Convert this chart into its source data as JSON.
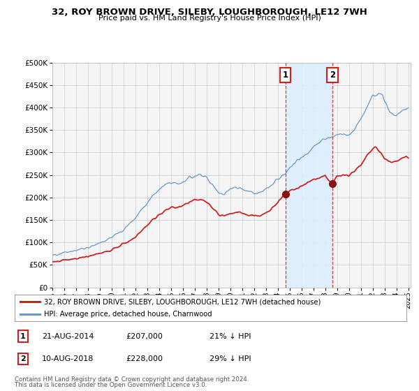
{
  "title": "32, ROY BROWN DRIVE, SILEBY, LOUGHBOROUGH, LE12 7WH",
  "subtitle": "Price paid vs. HM Land Registry's House Price Index (HPI)",
  "background_color": "#ffffff",
  "plot_bg_color": "#f5f5f5",
  "line1_color": "#cc2222",
  "line2_color": "#6699cc",
  "shading_color": "#ddeeff",
  "annotation1": {
    "label": "1",
    "date": "21-AUG-2014",
    "price": "£207,000",
    "pct": "21% ↓ HPI"
  },
  "annotation2": {
    "label": "2",
    "date": "10-AUG-2018",
    "price": "£228,000",
    "pct": "29% ↓ HPI"
  },
  "legend_line1": "32, ROY BROWN DRIVE, SILEBY, LOUGHBOROUGH, LE12 7WH (detached house)",
  "legend_line2": "HPI: Average price, detached house, Charnwood",
  "footer1": "Contains HM Land Registry data © Crown copyright and database right 2024.",
  "footer2": "This data is licensed under the Open Government Licence v3.0.",
  "ylim": [
    0,
    500000
  ],
  "yticks": [
    0,
    50000,
    100000,
    150000,
    200000,
    250000,
    300000,
    350000,
    400000,
    450000,
    500000
  ],
  "ann1_x": 2014.64,
  "ann2_x": 2018.61,
  "xmin": 1995,
  "xmax": 2025.2
}
